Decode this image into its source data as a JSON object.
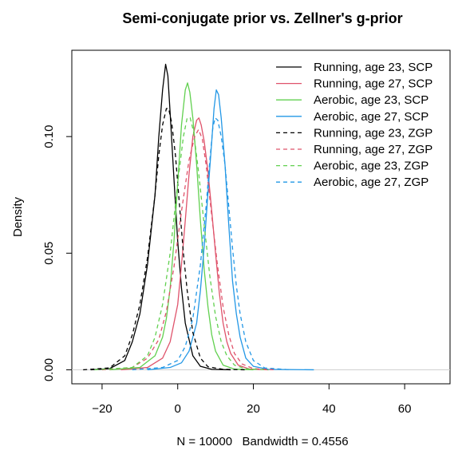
{
  "chart_data": {
    "type": "line",
    "title": "Semi-conjugate prior vs. Zellner's g-prior",
    "xlabel": "N = 10000   Bandwidth = 0.4556",
    "ylabel": "Density",
    "xlim": [
      -28,
      72
    ],
    "ylim": [
      -0.006,
      0.137
    ],
    "x_ticks": [
      -20,
      0,
      20,
      40,
      60
    ],
    "x_tick_labels": [
      "−20",
      "0",
      "20",
      "40",
      "60"
    ],
    "y_ticks": [
      0.0,
      0.05,
      0.1
    ],
    "y_tick_labels": [
      "0.00",
      "0.05",
      "0.10"
    ],
    "grid": false,
    "legend_position": "top-right",
    "series": [
      {
        "name": "Running, age 23, SCP",
        "color": "#000000",
        "dash": "solid",
        "points": [
          [
            -23,
            0
          ],
          [
            -18,
            0.0005
          ],
          [
            -14,
            0.004
          ],
          [
            -12,
            0.012
          ],
          [
            -10,
            0.024
          ],
          [
            -8,
            0.045
          ],
          [
            -6,
            0.075
          ],
          [
            -5,
            0.1
          ],
          [
            -4,
            0.12
          ],
          [
            -3.2,
            0.131
          ],
          [
            -2.6,
            0.126
          ],
          [
            -2,
            0.11
          ],
          [
            -1,
            0.082
          ],
          [
            0,
            0.055
          ],
          [
            1,
            0.035
          ],
          [
            2,
            0.02
          ],
          [
            4,
            0.006
          ],
          [
            6,
            0.0015
          ],
          [
            9,
            0.0002
          ],
          [
            14,
            0
          ]
        ]
      },
      {
        "name": "Running, age 27, SCP",
        "color": "#DF536B",
        "dash": "solid",
        "points": [
          [
            -15,
            0
          ],
          [
            -8,
            0.001
          ],
          [
            -4,
            0.005
          ],
          [
            -2,
            0.012
          ],
          [
            0,
            0.028
          ],
          [
            1,
            0.045
          ],
          [
            2,
            0.064
          ],
          [
            3,
            0.084
          ],
          [
            4,
            0.1
          ],
          [
            5,
            0.107
          ],
          [
            5.6,
            0.108
          ],
          [
            6.2,
            0.105
          ],
          [
            7,
            0.098
          ],
          [
            8,
            0.085
          ],
          [
            9,
            0.068
          ],
          [
            10,
            0.05
          ],
          [
            11,
            0.033
          ],
          [
            12,
            0.02
          ],
          [
            13,
            0.012
          ],
          [
            14,
            0.007
          ],
          [
            16,
            0.002
          ],
          [
            19,
            0.0003
          ],
          [
            24,
            0
          ]
        ]
      },
      {
        "name": "Aerobic, age 23, SCP",
        "color": "#61D04F",
        "dash": "solid",
        "points": [
          [
            -18,
            0
          ],
          [
            -10,
            0.001
          ],
          [
            -6,
            0.006
          ],
          [
            -4,
            0.014
          ],
          [
            -3,
            0.022
          ],
          [
            -2,
            0.035
          ],
          [
            -1,
            0.055
          ],
          [
            0,
            0.08
          ],
          [
            1,
            0.105
          ],
          [
            2,
            0.12
          ],
          [
            2.6,
            0.123
          ],
          [
            3.2,
            0.119
          ],
          [
            4,
            0.108
          ],
          [
            5,
            0.088
          ],
          [
            6,
            0.064
          ],
          [
            7,
            0.043
          ],
          [
            8,
            0.027
          ],
          [
            9,
            0.015
          ],
          [
            10,
            0.008
          ],
          [
            12,
            0.002
          ],
          [
            15,
            0.0003
          ],
          [
            20,
            0
          ]
        ]
      },
      {
        "name": "Aerobic, age 27, SCP",
        "color": "#2297E6",
        "dash": "solid",
        "points": [
          [
            -8,
            0
          ],
          [
            -2,
            0.001
          ],
          [
            1,
            0.003
          ],
          [
            3,
            0.008
          ],
          [
            5,
            0.02
          ],
          [
            6,
            0.034
          ],
          [
            7,
            0.053
          ],
          [
            8,
            0.076
          ],
          [
            9,
            0.098
          ],
          [
            9.6,
            0.112
          ],
          [
            10.2,
            0.12
          ],
          [
            10.8,
            0.118
          ],
          [
            11.5,
            0.108
          ],
          [
            12.5,
            0.088
          ],
          [
            13.5,
            0.062
          ],
          [
            14.5,
            0.038
          ],
          [
            15.5,
            0.024
          ],
          [
            16.5,
            0.014
          ],
          [
            18,
            0.005
          ],
          [
            20,
            0.0015
          ],
          [
            24,
            0.0002
          ],
          [
            36,
            0
          ]
        ]
      },
      {
        "name": "Running, age 23, ZGP",
        "color": "#000000",
        "dash": "dashed",
        "points": [
          [
            -25,
            0
          ],
          [
            -18,
            0.0008
          ],
          [
            -14,
            0.006
          ],
          [
            -12,
            0.015
          ],
          [
            -10,
            0.028
          ],
          [
            -8,
            0.048
          ],
          [
            -6,
            0.075
          ],
          [
            -5,
            0.092
          ],
          [
            -4,
            0.105
          ],
          [
            -3,
            0.112
          ],
          [
            -2.4,
            0.112
          ],
          [
            -1.6,
            0.106
          ],
          [
            -0.6,
            0.092
          ],
          [
            0.5,
            0.07
          ],
          [
            1.5,
            0.05
          ],
          [
            2.5,
            0.034
          ],
          [
            4,
            0.016
          ],
          [
            6,
            0.005
          ],
          [
            8,
            0.0013
          ],
          [
            12,
            0.0002
          ],
          [
            18,
            0
          ]
        ]
      },
      {
        "name": "Running, age 27, ZGP",
        "color": "#DF536B",
        "dash": "dashed",
        "points": [
          [
            -20,
            0
          ],
          [
            -12,
            0.001
          ],
          [
            -8,
            0.005
          ],
          [
            -5,
            0.013
          ],
          [
            -3,
            0.025
          ],
          [
            -1,
            0.044
          ],
          [
            1,
            0.068
          ],
          [
            3,
            0.09
          ],
          [
            4.5,
            0.1
          ],
          [
            5.5,
            0.103
          ],
          [
            6.5,
            0.099
          ],
          [
            7.5,
            0.088
          ],
          [
            9,
            0.066
          ],
          [
            10.5,
            0.045
          ],
          [
            12,
            0.027
          ],
          [
            13.5,
            0.015
          ],
          [
            15,
            0.007
          ],
          [
            17,
            0.0025
          ],
          [
            20,
            0.0005
          ],
          [
            26,
            0
          ]
        ]
      },
      {
        "name": "Aerobic, age 23, ZGP",
        "color": "#61D04F",
        "dash": "dashed",
        "points": [
          [
            -22,
            0
          ],
          [
            -12,
            0.001
          ],
          [
            -8,
            0.006
          ],
          [
            -6,
            0.014
          ],
          [
            -4,
            0.028
          ],
          [
            -2,
            0.05
          ],
          [
            0,
            0.08
          ],
          [
            1.5,
            0.1
          ],
          [
            2.5,
            0.108
          ],
          [
            3.3,
            0.108
          ],
          [
            4.2,
            0.102
          ],
          [
            5.5,
            0.085
          ],
          [
            7,
            0.062
          ],
          [
            8.5,
            0.04
          ],
          [
            10,
            0.023
          ],
          [
            11.5,
            0.012
          ],
          [
            13,
            0.006
          ],
          [
            15,
            0.002
          ],
          [
            18,
            0.0004
          ],
          [
            24,
            0
          ]
        ]
      },
      {
        "name": "Aerobic, age 27, ZGP",
        "color": "#2297E6",
        "dash": "dashed",
        "points": [
          [
            -12,
            0
          ],
          [
            -4,
            0.001
          ],
          [
            0,
            0.004
          ],
          [
            2,
            0.01
          ],
          [
            4,
            0.022
          ],
          [
            6,
            0.045
          ],
          [
            7.5,
            0.07
          ],
          [
            8.5,
            0.09
          ],
          [
            9.3,
            0.104
          ],
          [
            9.9,
            0.108
          ],
          [
            10.6,
            0.107
          ],
          [
            11.5,
            0.1
          ],
          [
            12.5,
            0.088
          ],
          [
            13.5,
            0.07
          ],
          [
            14.5,
            0.052
          ],
          [
            15.5,
            0.036
          ],
          [
            16.5,
            0.024
          ],
          [
            18,
            0.012
          ],
          [
            20,
            0.004
          ],
          [
            23,
            0.0008
          ],
          [
            30,
            0
          ]
        ]
      }
    ]
  }
}
